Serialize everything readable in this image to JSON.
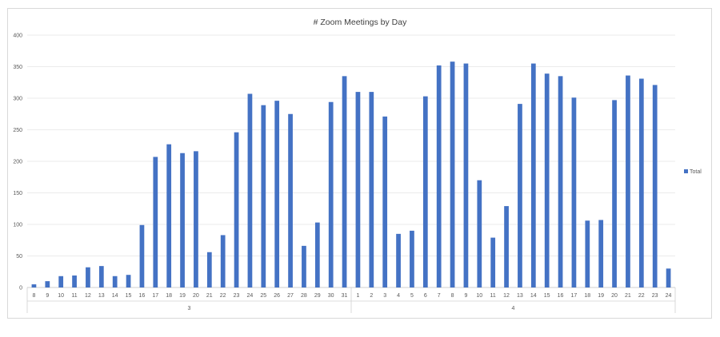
{
  "chart_data": {
    "type": "bar",
    "title": "# Zoom Meetings by Day",
    "xlabel": "",
    "ylabel": "",
    "ylim": [
      0,
      400
    ],
    "yticks": [
      0,
      50,
      100,
      150,
      200,
      250,
      300,
      350,
      400
    ],
    "grid": true,
    "legend_position": "right",
    "bar_color": "#4472c4",
    "groups": [
      {
        "label": "3",
        "categories": [
          "8",
          "9",
          "10",
          "11",
          "12",
          "13",
          "14",
          "15",
          "16",
          "17",
          "18",
          "19",
          "20",
          "21",
          "22",
          "23",
          "24",
          "25",
          "26",
          "27",
          "28",
          "29",
          "30",
          "31"
        ]
      },
      {
        "label": "4",
        "categories": [
          "1",
          "2",
          "3",
          "4",
          "5",
          "6",
          "7",
          "8",
          "9",
          "10",
          "11",
          "12",
          "13",
          "14",
          "15",
          "16",
          "17",
          "18",
          "19",
          "20",
          "21",
          "22",
          "23",
          "24"
        ]
      }
    ],
    "series": [
      {
        "name": "Total",
        "values": [
          5,
          10,
          18,
          19,
          32,
          34,
          18,
          20,
          99,
          207,
          227,
          213,
          216,
          56,
          83,
          246,
          307,
          289,
          296,
          275,
          66,
          103,
          294,
          335,
          310,
          310,
          271,
          85,
          90,
          303,
          352,
          358,
          355,
          170,
          79,
          129,
          291,
          355,
          339,
          335,
          301,
          106,
          107,
          297,
          336,
          331,
          321,
          30
        ]
      }
    ]
  }
}
